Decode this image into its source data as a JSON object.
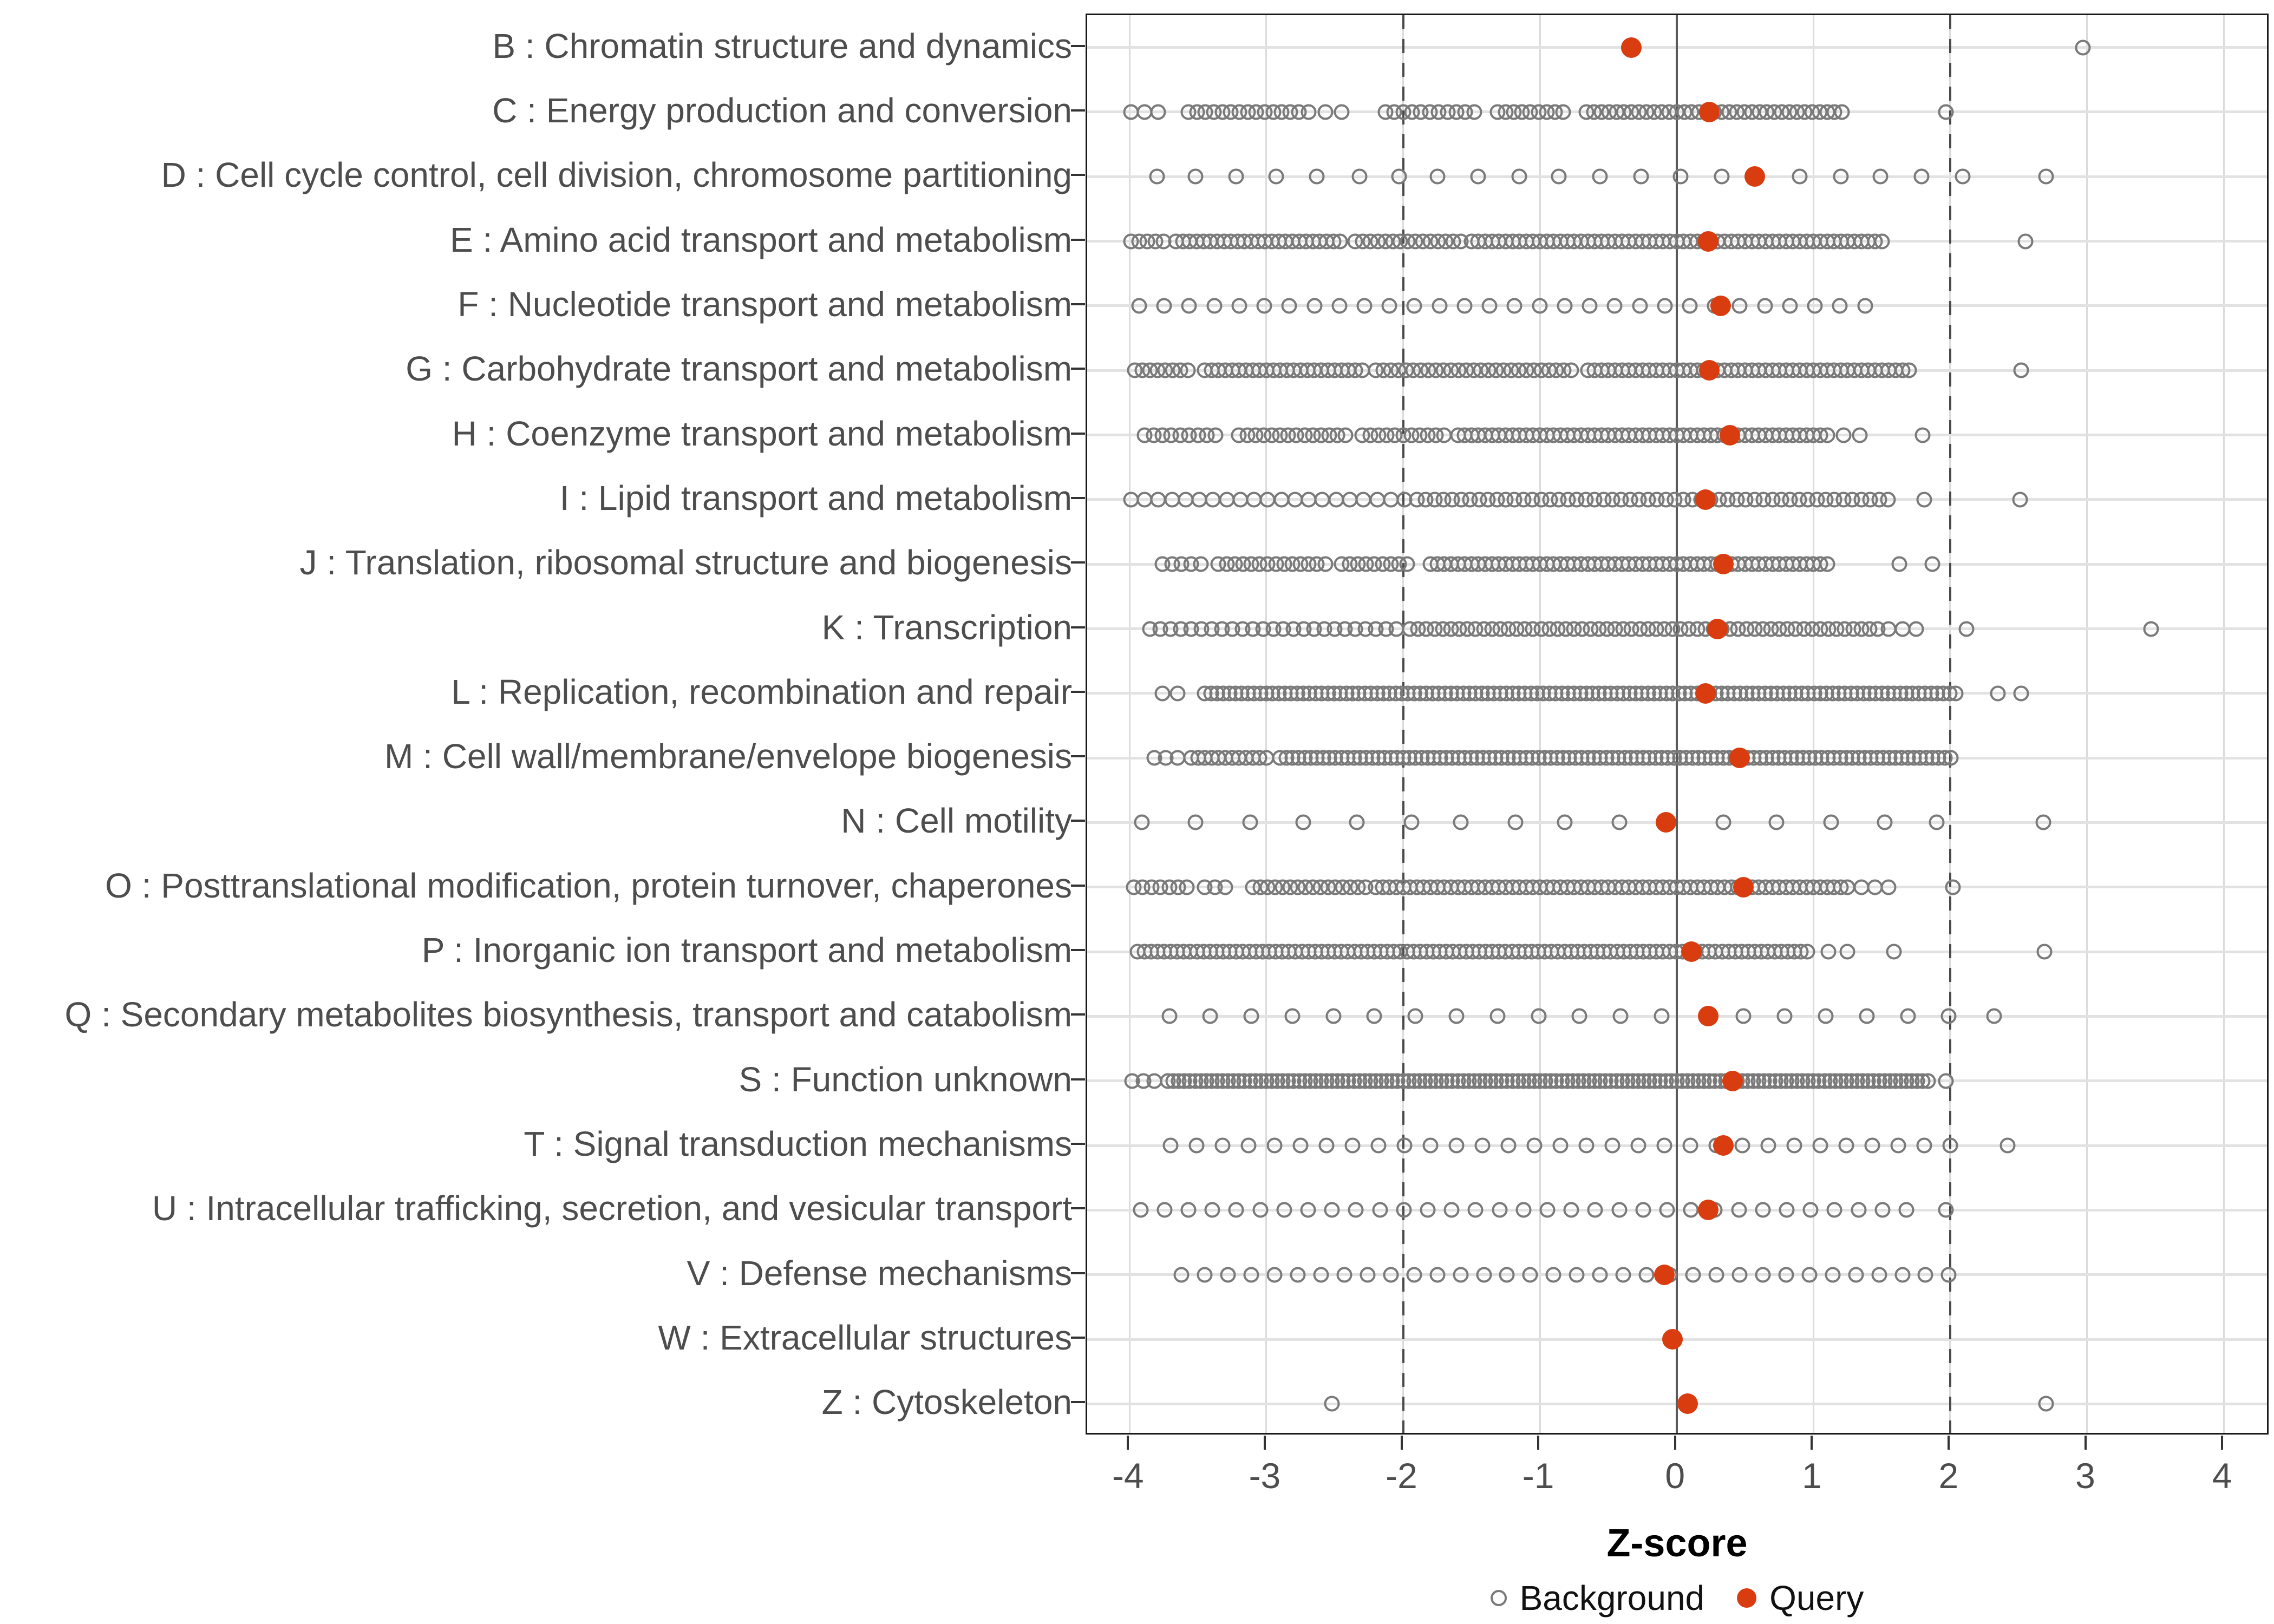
{
  "chart_data": {
    "type": "scatter",
    "title": "",
    "x_axis": {
      "label": "Z-score",
      "ticks": [
        -4,
        -3,
        -2,
        -1,
        0,
        1,
        2,
        3,
        4
      ],
      "axis_range": [
        -4.31,
        4.34
      ],
      "grid": true
    },
    "reference_lines": {
      "dashed_at": [
        -2,
        2
      ],
      "solid_at": [
        0
      ]
    },
    "legend": {
      "position": "bottom",
      "items": [
        {
          "label": "Background",
          "marker": "open-circle",
          "color": "#7a7a7a"
        },
        {
          "label": "Query",
          "marker": "filled-circle",
          "color": "#D93C0F"
        }
      ]
    },
    "rows": [
      {
        "label": "B : Chromatin structure and dynamics",
        "query": -0.33,
        "background_points": [
          2.97
        ],
        "background_segments": []
      },
      {
        "label": "C : Energy production and conversion",
        "query": 0.24,
        "background_points": [
          1.97
        ],
        "background_segments": [
          [
            -3.99,
            -3.79,
            0.1
          ],
          [
            -3.57,
            -2.78,
            0.062
          ],
          [
            -2.69,
            -2.44,
            0.12
          ],
          [
            -2.13,
            -1.45,
            0.065
          ],
          [
            -1.31,
            -0.81,
            0.06
          ],
          [
            -0.66,
            1.19,
            0.055
          ]
        ]
      },
      {
        "label": "D : Cell cycle control, cell division, chromosome partitioning",
        "query": 0.57,
        "background_points": [
          -3.8,
          -3.52,
          -3.22,
          -2.93,
          -2.63,
          -2.32,
          -2.03,
          -1.75,
          -1.45,
          -1.15,
          -0.86,
          -0.56,
          -0.26,
          0.03,
          0.33,
          0.9,
          1.2,
          1.49,
          1.79,
          2.09,
          2.7
        ],
        "background_segments": []
      },
      {
        "label": "E : Amino acid transport and metabolism",
        "query": 0.23,
        "background_points": [
          2.55
        ],
        "background_segments": [
          [
            -3.99,
            -3.75,
            0.06
          ],
          [
            -3.66,
            -2.45,
            0.05
          ],
          [
            -2.35,
            -1.6,
            0.055
          ],
          [
            -1.5,
            1.52,
            0.05
          ]
        ]
      },
      {
        "label": "F : Nucleotide transport and metabolism",
        "query": 0.32,
        "background_points": [],
        "background_segments": [
          [
            -3.93,
            1.36,
            0.183
          ]
        ]
      },
      {
        "label": "G : Carbohydrate transport and metabolism",
        "query": 0.24,
        "background_points": [
          2.52
        ],
        "background_segments": [
          [
            -3.96,
            -3.55,
            0.055
          ],
          [
            -3.45,
            -2.3,
            0.05
          ],
          [
            -2.2,
            -0.75,
            0.055
          ],
          [
            -0.65,
            1.7,
            0.05
          ]
        ]
      },
      {
        "label": "H : Coenzyme transport and metabolism",
        "query": 0.39,
        "background_points": [
          1.8
        ],
        "background_segments": [
          [
            -3.89,
            -3.4,
            0.065
          ],
          [
            -3.2,
            -2.4,
            0.06
          ],
          [
            -2.3,
            -1.7,
            0.06
          ],
          [
            -1.6,
            1.05,
            0.05
          ],
          [
            1.1,
            1.35,
            0.12
          ]
        ]
      },
      {
        "label": "I : Lipid transport and metabolism",
        "query": 0.21,
        "background_points": [
          1.81,
          2.51
        ],
        "background_segments": [
          [
            -3.99,
            -2.0,
            0.1
          ],
          [
            -1.9,
            1.55,
            0.065
          ]
        ]
      },
      {
        "label": "J : Translation, ribosomal structure and biogenesis",
        "query": 0.34,
        "background_points": [
          1.63,
          1.87
        ],
        "background_segments": [
          [
            -3.76,
            -3.45,
            0.07
          ],
          [
            -3.35,
            -2.6,
            0.06
          ],
          [
            -2.45,
            -1.95,
            0.06
          ],
          [
            -1.8,
            1.11,
            0.05
          ]
        ]
      },
      {
        "label": "K : Transcription",
        "query": 0.3,
        "background_points": [
          2.12,
          3.47
        ],
        "background_segments": [
          [
            -3.85,
            -2.05,
            0.075
          ],
          [
            -1.95,
            1.45,
            0.06
          ],
          [
            1.55,
            1.76,
            0.1
          ]
        ]
      },
      {
        "label": "L : Replication, recombination and repair",
        "query": 0.21,
        "background_points": [
          2.35,
          2.52
        ],
        "background_segments": [
          [
            -3.76,
            -3.65,
            0.11
          ],
          [
            -3.45,
            2.04,
            0.045
          ]
        ]
      },
      {
        "label": "M : Cell wall/membrane/envelope biogenesis",
        "query": 0.46,
        "background_points": [],
        "background_segments": [
          [
            -3.82,
            -3.65,
            0.085
          ],
          [
            -3.55,
            -3.0,
            0.05
          ],
          [
            -2.9,
            2.01,
            0.045
          ]
        ]
      },
      {
        "label": "N : Cell motility",
        "query": -0.08,
        "background_points": [
          -3.91,
          -3.52,
          -3.12,
          -2.73,
          -2.34,
          -1.94,
          -1.58,
          -1.18,
          -0.82,
          -0.42,
          0.34,
          0.73,
          1.13,
          1.52,
          1.9,
          2.68
        ],
        "background_segments": []
      },
      {
        "label": "O : Posttranslational modification, protein turnover, chaperones",
        "query": 0.49,
        "background_points": [
          2.02
        ],
        "background_segments": [
          [
            -3.97,
            -3.6,
            0.065
          ],
          [
            -3.45,
            -3.3,
            0.075
          ],
          [
            -3.1,
            -2.3,
            0.055
          ],
          [
            -2.2,
            1.25,
            0.05
          ],
          [
            1.35,
            1.55,
            0.1
          ]
        ]
      },
      {
        "label": "P : Inorganic ion transport and metabolism",
        "query": 0.11,
        "background_points": [
          1.11,
          1.25,
          1.59,
          2.69
        ],
        "background_segments": [
          [
            -3.94,
            0.94,
            0.048
          ]
        ]
      },
      {
        "label": "Q : Secondary metabolites biosynthesis, transport and catabolism",
        "query": 0.23,
        "background_points": [
          -3.71,
          -3.41,
          -3.11,
          -2.81,
          -2.51,
          -2.21,
          -1.91,
          -1.61,
          -1.31,
          -1.01,
          -0.71,
          -0.41,
          -0.11,
          0.49,
          0.79,
          1.09,
          1.39,
          1.69,
          1.99,
          2.32
        ],
        "background_segments": []
      },
      {
        "label": "S : Function unknown",
        "query": 0.41,
        "background_points": [
          1.97
        ],
        "background_segments": [
          [
            -3.98,
            -3.82,
            0.08
          ],
          [
            -3.72,
            1.85,
            0.04
          ]
        ]
      },
      {
        "label": "T : Signal transduction mechanisms",
        "query": 0.34,
        "background_points": [
          2.42
        ],
        "background_segments": [
          [
            -3.7,
            1.95,
            0.19
          ]
        ]
      },
      {
        "label": "U : Intracellular trafficking, secretion, and vesicular transport",
        "query": 0.23,
        "background_points": [
          1.97
        ],
        "background_segments": [
          [
            -3.92,
            1.67,
            0.175
          ]
        ]
      },
      {
        "label": "V : Defense mechanisms",
        "query": -0.09,
        "background_points": [],
        "background_segments": [
          [
            -3.62,
            1.95,
            0.17
          ]
        ]
      },
      {
        "label": "W : Extracellular structures",
        "query": -0.03,
        "background_points": [],
        "background_segments": []
      },
      {
        "label": "Z : Cytoskeleton",
        "query": 0.08,
        "background_points": [
          -2.52,
          2.7
        ],
        "background_segments": []
      }
    ]
  },
  "colors": {
    "query_fill": "#D93C0F",
    "background_stroke": "#7a7a7a",
    "gridline": "#dbdbdb",
    "reference_line": "#4a4a4a",
    "panel_border": "#1a1a1a",
    "axis_text": "#4d4d4d"
  }
}
